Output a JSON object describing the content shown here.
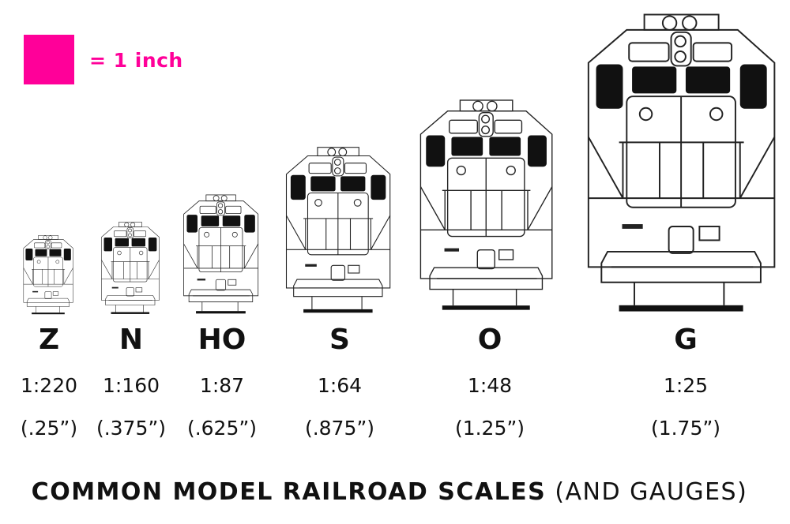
{
  "legend": {
    "label": "= 1 inch",
    "color": "#ff0099"
  },
  "scales": [
    {
      "name": "Z",
      "ratio": "1:220",
      "size": "(.25”)"
    },
    {
      "name": "N",
      "ratio": "1:160",
      "size": "(.375”)"
    },
    {
      "name": "HO",
      "ratio": "1:87",
      "size": "(.625”)"
    },
    {
      "name": "S",
      "ratio": "1:64",
      "size": "(.875”)"
    },
    {
      "name": "O",
      "ratio": "1:48",
      "size": "(1.25”)"
    },
    {
      "name": "G",
      "ratio": "1:25",
      "size": "(1.75”)"
    }
  ],
  "title": {
    "bold": "COMMON MODEL RAILROAD SCALES",
    "light": " (AND GAUGES)"
  }
}
